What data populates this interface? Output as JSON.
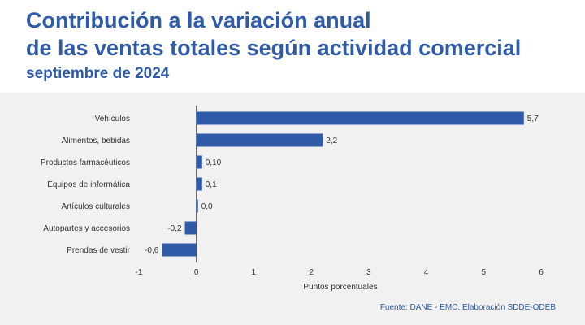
{
  "header": {
    "title_line1": "Contribución a la variación anual",
    "title_line2": "de las ventas totales según actividad comercial",
    "subtitle": "septiembre de 2024"
  },
  "footer": {
    "source": "Fuente: DANE - EMC. Elaboración SDDE-ODEB"
  },
  "colors": {
    "title": "#2f5aa8",
    "subtitle": "#2f5aa8",
    "bar": "#2f5aa8",
    "source": "#2f5aa8",
    "panel_background": "#f1f1f1"
  },
  "chart_data": {
    "type": "bar",
    "orientation": "horizontal",
    "categories": [
      "Vehículos",
      "Alimentos, bebidas",
      "Productos farmacéuticos",
      "Equipos de informática",
      "Artículos culturales",
      "Autopartes y accesorios",
      "Prendas de vestir"
    ],
    "values": [
      5.7,
      2.2,
      0.1,
      0.1,
      0.0,
      -0.2,
      -0.6
    ],
    "data_labels": [
      "5,7",
      "2,2",
      "0,10",
      "0,1",
      "0,0",
      "-0,2",
      "-0,6"
    ],
    "xlabel": "Puntos porcentuales",
    "xlim": [
      -1,
      6
    ],
    "xticks": [
      -1,
      0,
      1,
      2,
      3,
      4,
      5,
      6
    ],
    "xtick_labels": [
      "-1",
      "0",
      "1",
      "2",
      "3",
      "4",
      "5",
      "6"
    ],
    "grid": false,
    "legend": "none"
  }
}
